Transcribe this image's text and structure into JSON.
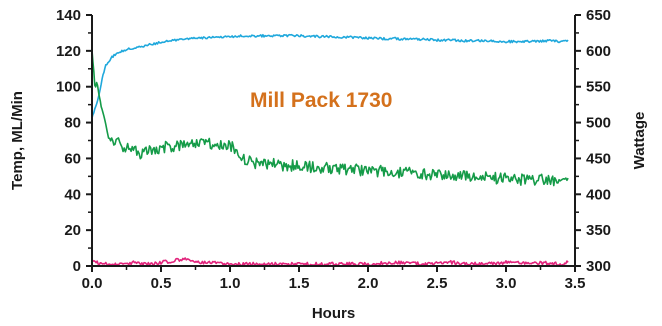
{
  "chart_data": {
    "type": "line",
    "title": "",
    "annotation": {
      "text": "Mill Pack 1730",
      "color": "#d4711c"
    },
    "xlabel": "Hours",
    "ylabel_left": "Temp, ML/Min",
    "ylabel_right": "Wattage",
    "xlim": [
      0,
      3.5
    ],
    "ylim_left": [
      0,
      140
    ],
    "ylim_right": [
      300,
      650
    ],
    "x_ticks": [
      "0.0",
      "0.5",
      "1.0",
      "1.5",
      "2.0",
      "2.5",
      "3.0",
      "3.5"
    ],
    "y_left_ticks": [
      "0",
      "20",
      "40",
      "60",
      "80",
      "100",
      "120",
      "140"
    ],
    "y_right_ticks": [
      "300",
      "350",
      "400",
      "450",
      "500",
      "550",
      "600",
      "650"
    ],
    "grid": false,
    "legend": "none",
    "series": [
      {
        "axis": "right",
        "color": "#1fa8dc",
        "x": [
          0.0,
          0.02,
          0.04,
          0.06,
          0.08,
          0.1,
          0.13,
          0.16,
          0.2,
          0.25,
          0.3,
          0.35,
          0.4,
          0.5,
          0.6,
          0.7,
          0.8,
          0.9,
          1.0,
          1.1,
          1.2,
          1.3,
          1.4,
          1.5,
          1.6,
          1.7,
          1.8,
          1.9,
          2.0,
          2.1,
          2.2,
          2.3,
          2.4,
          2.5,
          2.6,
          2.7,
          2.8,
          2.9,
          3.0,
          3.1,
          3.2,
          3.3,
          3.4,
          3.45
        ],
        "values": [
          508,
          518,
          530,
          548,
          566,
          580,
          588,
          594,
          598,
          602,
          604,
          606,
          608,
          612,
          615,
          617,
          618,
          619,
          620,
          621,
          621,
          621,
          621,
          621,
          620,
          620,
          619,
          619,
          618,
          617,
          617,
          616,
          616,
          615,
          615,
          614,
          614,
          614,
          613,
          613,
          613,
          614,
          613,
          615
        ]
      },
      {
        "axis": "left",
        "color": "#159b48",
        "x": [
          0.0,
          0.02,
          0.04,
          0.06,
          0.08,
          0.1,
          0.12,
          0.15,
          0.2,
          0.25,
          0.3,
          0.35,
          0.4,
          0.5,
          0.6,
          0.7,
          0.75,
          0.8,
          0.85,
          0.9,
          1.0,
          1.05,
          1.1,
          1.2,
          1.3,
          1.4,
          1.5,
          1.6,
          1.7,
          1.8,
          1.9,
          2.0,
          2.1,
          2.2,
          2.3,
          2.4,
          2.5,
          2.6,
          2.7,
          2.8,
          2.9,
          3.0,
          3.1,
          3.2,
          3.3,
          3.4,
          3.45
        ],
        "values": [
          120,
          104,
          98,
          90,
          84,
          76,
          72,
          70,
          68,
          66,
          64,
          63,
          65,
          66,
          67,
          68,
          67,
          69,
          68,
          68,
          67,
          65,
          59,
          57,
          57,
          56,
          56,
          55,
          55,
          54,
          54,
          53,
          53,
          52,
          52,
          51,
          51,
          50,
          50,
          50,
          49,
          49,
          48,
          48,
          48,
          48,
          49
        ]
      },
      {
        "axis": "left",
        "color": "#e2247c",
        "x": [
          0.0,
          0.03,
          0.06,
          0.1,
          0.2,
          0.3,
          0.4,
          0.5,
          0.6,
          0.65,
          0.7,
          0.8,
          0.9,
          1.0,
          1.2,
          1.4,
          1.6,
          1.8,
          2.0,
          2.2,
          2.4,
          2.6,
          2.8,
          3.0,
          3.2,
          3.4,
          3.45
        ],
        "values": [
          4,
          2,
          1,
          1,
          1,
          2,
          1,
          2,
          3,
          4,
          3,
          2,
          2,
          1,
          1,
          1,
          1,
          1,
          1,
          2,
          1,
          2,
          1,
          2,
          2,
          1,
          2
        ]
      }
    ]
  }
}
